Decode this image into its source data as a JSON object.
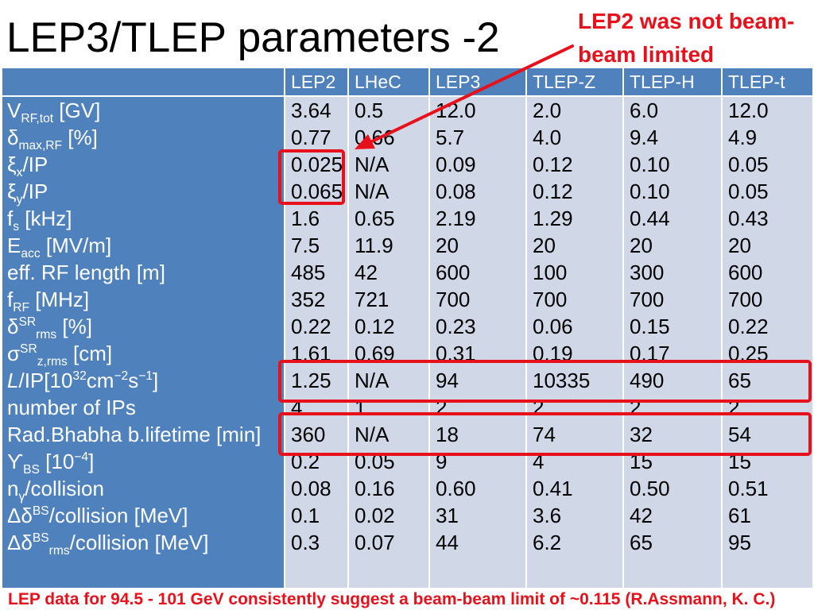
{
  "slide": {
    "title": "LEP3/TLEP parameters -2",
    "annotation": [
      "LEP2 was not beam-",
      "beam limited"
    ],
    "footer": "LEP data for 94.5 - 101 GeV consistently suggest a beam-beam limit of ~0.115 (R.Assmann, K. C.)"
  },
  "colors": {
    "header_bg": "#4f81bd",
    "body_bg": "#d0d8e8",
    "highlight": "#e8101a"
  },
  "table": {
    "columns": [
      "LEP2",
      "LHeC",
      "LEP3",
      "TLEP-Z",
      "TLEP-H",
      "TLEP-t"
    ],
    "rows": [
      {
        "label": [
          {
            "k": "t",
            "v": "V"
          },
          {
            "k": "sub",
            "v": "RF,tot"
          },
          {
            "k": "t",
            "v": " [GV]"
          }
        ],
        "values": [
          "3.64",
          "0.5",
          "12.0",
          "2.0",
          "6.0",
          "12.0"
        ]
      },
      {
        "label": [
          {
            "k": "t",
            "v": "δ"
          },
          {
            "k": "sub",
            "v": "max,RF"
          },
          {
            "k": "t",
            "v": " [%]"
          }
        ],
        "values": [
          "0.77",
          "0.66",
          "5.7",
          "4.0",
          "9.4",
          "4.9"
        ]
      },
      {
        "label": [
          {
            "k": "t",
            "v": "ξ"
          },
          {
            "k": "sub",
            "v": "x"
          },
          {
            "k": "t",
            "v": "/IP"
          }
        ],
        "values": [
          "0.025",
          "N/A",
          "0.09",
          "0.12",
          "0.10",
          "0.05"
        ]
      },
      {
        "label": [
          {
            "k": "t",
            "v": "ξ"
          },
          {
            "k": "sub",
            "v": "y"
          },
          {
            "k": "t",
            "v": "/IP"
          }
        ],
        "values": [
          "0.065",
          "N/A",
          "0.08",
          "0.12",
          "0.10",
          "0.05"
        ]
      },
      {
        "label": [
          {
            "k": "t",
            "v": "f"
          },
          {
            "k": "sub",
            "v": "s"
          },
          {
            "k": "t",
            "v": " [kHz]"
          }
        ],
        "values": [
          "1.6",
          "0.65",
          "2.19",
          "1.29",
          "0.44",
          "0.43"
        ]
      },
      {
        "label": [
          {
            "k": "t",
            "v": "E"
          },
          {
            "k": "sub",
            "v": "acc"
          },
          {
            "k": "t",
            "v": " [MV/m]"
          }
        ],
        "values": [
          "7.5",
          "11.9",
          "20",
          "20",
          "20",
          "20"
        ]
      },
      {
        "label": [
          {
            "k": "t",
            "v": "eff. RF length [m]"
          }
        ],
        "values": [
          "485",
          "42",
          "600",
          "100",
          "300",
          "600"
        ]
      },
      {
        "label": [
          {
            "k": "t",
            "v": "f"
          },
          {
            "k": "sub",
            "v": "RF"
          },
          {
            "k": "t",
            "v": " [MHz]"
          }
        ],
        "values": [
          "352",
          "721",
          "700",
          "700",
          "700",
          "700"
        ]
      },
      {
        "label": [
          {
            "k": "t",
            "v": "δ"
          },
          {
            "k": "sup",
            "v": "SR"
          },
          {
            "k": "sub",
            "v": "rms"
          },
          {
            "k": "t",
            "v": " [%]"
          }
        ],
        "values": [
          "0.22",
          "0.12",
          "0.23",
          "0.06",
          "0.15",
          "0.22"
        ]
      },
      {
        "label": [
          {
            "k": "t",
            "v": "σ"
          },
          {
            "k": "sup",
            "v": "SR"
          },
          {
            "k": "sub",
            "v": "z,rms"
          },
          {
            "k": "t",
            "v": " [cm]"
          }
        ],
        "values": [
          "1.61",
          "0.69",
          "0.31",
          "0.19",
          "0.17",
          "0.25"
        ]
      },
      {
        "label": [
          {
            "k": "i",
            "v": "L"
          },
          {
            "k": "t",
            "v": "/IP[10"
          },
          {
            "k": "sup",
            "v": "32"
          },
          {
            "k": "t",
            "v": "cm"
          },
          {
            "k": "sup",
            "v": "−2"
          },
          {
            "k": "t",
            "v": "s"
          },
          {
            "k": "sup",
            "v": "−1"
          },
          {
            "k": "t",
            "v": "]"
          }
        ],
        "values": [
          "1.25",
          "N/A",
          "94",
          "10335",
          "490",
          "65"
        ]
      },
      {
        "label": [
          {
            "k": "t",
            "v": "number of IPs"
          }
        ],
        "values": [
          "4",
          "1",
          "2",
          "2",
          "2",
          "2"
        ]
      },
      {
        "label": [
          {
            "k": "t",
            "v": "Rad.Bhabha b.lifetime [min]"
          }
        ],
        "values": [
          "360",
          "N/A",
          "18",
          "74",
          "32",
          "54"
        ]
      },
      {
        "label": [
          {
            "k": "t",
            "v": "ϒ"
          },
          {
            "k": "sub",
            "v": "BS"
          },
          {
            "k": "t",
            "v": " [10"
          },
          {
            "k": "sup",
            "v": "−4"
          },
          {
            "k": "t",
            "v": "]"
          }
        ],
        "values": [
          "0.2",
          "0.05",
          "9",
          "4",
          "15",
          "15"
        ]
      },
      {
        "label": [
          {
            "k": "t",
            "v": "n"
          },
          {
            "k": "sub",
            "v": "γ"
          },
          {
            "k": "t",
            "v": "/collision"
          }
        ],
        "values": [
          "0.08",
          "0.16",
          "0.60",
          "0.41",
          "0.50",
          "0.51"
        ]
      },
      {
        "label": [
          {
            "k": "t",
            "v": "Δδ"
          },
          {
            "k": "sup",
            "v": "BS"
          },
          {
            "k": "t",
            "v": "/collision [MeV]"
          }
        ],
        "values": [
          "0.1",
          "0.02",
          "31",
          "3.6",
          "42",
          "61"
        ]
      },
      {
        "label": [
          {
            "k": "t",
            "v": "Δδ"
          },
          {
            "k": "sup",
            "v": "BS"
          },
          {
            "k": "sub",
            "v": "rms"
          },
          {
            "k": "t",
            "v": "/collision [MeV]"
          }
        ],
        "values": [
          "0.3",
          "0.07",
          "44",
          "6.2",
          "65",
          "95"
        ]
      }
    ]
  }
}
